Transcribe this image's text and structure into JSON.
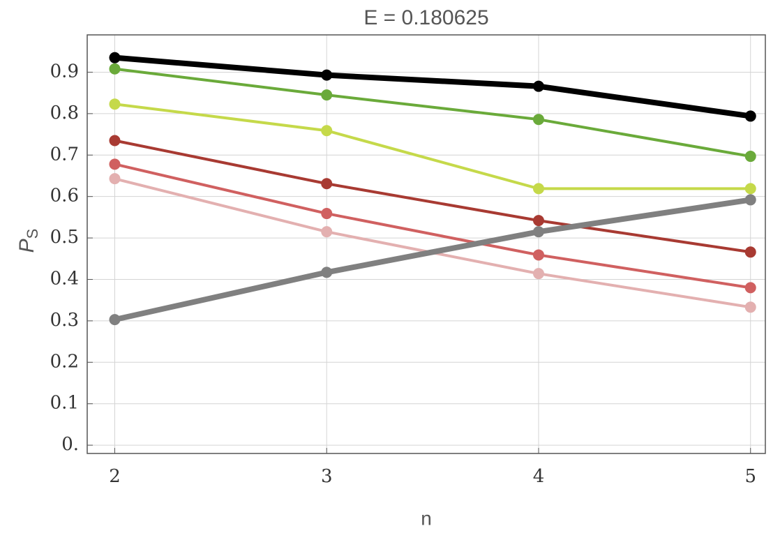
{
  "chart_data": {
    "type": "line",
    "title": "E = 0.180625",
    "x_label": "n",
    "y_label": {
      "main": "P",
      "sub": "S"
    },
    "x": [
      2,
      3,
      4,
      5
    ],
    "xlim": [
      1.87,
      5.07
    ],
    "xticks": [
      2,
      3,
      4,
      5
    ],
    "ylim": [
      -0.02,
      0.99
    ],
    "yticks": [
      {
        "value": 0,
        "label": "0."
      },
      0.1,
      0.2,
      0.3,
      0.4,
      0.5,
      0.6,
      0.7,
      0.8,
      0.9
    ],
    "grid": true,
    "series": [
      {
        "color": "#d06060",
        "line_width": 4,
        "values": [
          0.678,
          0.559,
          0.459,
          0.38
        ]
      },
      {
        "color": "#e3b0b0",
        "line_width": 4,
        "values": [
          0.643,
          0.515,
          0.414,
          0.333
        ]
      },
      {
        "color": "#a83a32",
        "line_width": 4,
        "values": [
          0.735,
          0.631,
          0.542,
          0.466
        ]
      },
      {
        "color": "#c5d94a",
        "line_width": 4,
        "values": [
          0.823,
          0.759,
          0.619,
          0.619
        ]
      },
      {
        "color": "#6aaa3a",
        "line_width": 4,
        "values": [
          0.908,
          0.845,
          0.786,
          0.697
        ]
      },
      {
        "color": "#808080",
        "line_width": 8,
        "values": [
          0.303,
          0.417,
          0.515,
          0.592
        ]
      },
      {
        "color": "#000000",
        "line_width": 8,
        "values": [
          0.935,
          0.893,
          0.866,
          0.794
        ]
      }
    ]
  }
}
